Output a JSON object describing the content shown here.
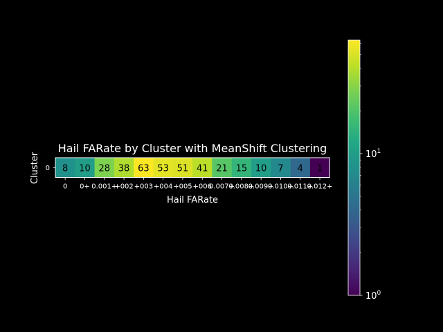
{
  "chart_data": {
    "type": "heatmap",
    "title": "Hail FARate by Cluster with MeanShift Clustering",
    "xlabel": "Hail FARate",
    "ylabel": "Cluster",
    "rows": [
      "0"
    ],
    "columns": [
      "0",
      "0+",
      "0.001+",
      "0.002+",
      "0.003+",
      "0.004+",
      "0.005+",
      "0.006+",
      "0.007+",
      "0.008+",
      "0.009+",
      "0.010+",
      "0.011+",
      "0.012+"
    ],
    "column_tick_labels_as_drawn": [
      "0",
      "0+",
      "0.001+",
      "+002",
      "+003",
      "+004",
      "+005",
      "+006",
      "0.007+",
      "0.008+",
      "0.009+",
      "0.010+",
      "0.011+",
      "0.012+"
    ],
    "values": [
      [
        8,
        10,
        28,
        38,
        63,
        53,
        51,
        41,
        21,
        15,
        10,
        7,
        4,
        1
      ]
    ],
    "colormap": "viridis",
    "color_scale": "log",
    "colorbar_range": [
      1,
      63
    ],
    "colorbar_ticks": [
      {
        "value": 1,
        "base": "10",
        "exp": "0"
      },
      {
        "value": 10,
        "base": "10",
        "exp": "1"
      }
    ],
    "grid": false,
    "legend": "colorbar-right",
    "background": "#000000",
    "text_color": "#ffffff",
    "annotation_color": "#000000"
  }
}
